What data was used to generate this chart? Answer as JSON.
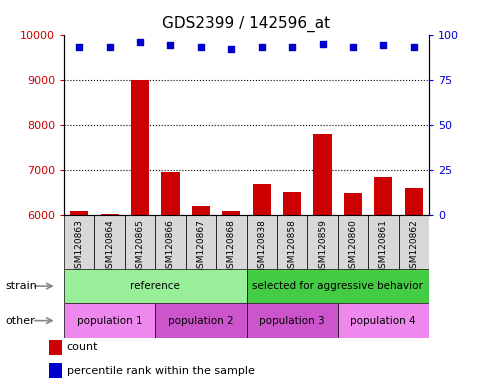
{
  "title": "GDS2399 / 142596_at",
  "samples": [
    "GSM120863",
    "GSM120864",
    "GSM120865",
    "GSM120866",
    "GSM120867",
    "GSM120868",
    "GSM120838",
    "GSM120858",
    "GSM120859",
    "GSM120860",
    "GSM120861",
    "GSM120862"
  ],
  "counts": [
    6100,
    6020,
    9000,
    6950,
    6200,
    6080,
    6680,
    6500,
    7800,
    6480,
    6850,
    6600
  ],
  "percentile_ranks": [
    93,
    93,
    96,
    94,
    93,
    92,
    93,
    93,
    95,
    93,
    94,
    93
  ],
  "ylim_left": [
    6000,
    10000
  ],
  "ylim_right": [
    0,
    100
  ],
  "yticks_left": [
    6000,
    7000,
    8000,
    9000,
    10000
  ],
  "yticks_right": [
    0,
    25,
    50,
    75,
    100
  ],
  "bar_color": "#cc0000",
  "dot_color": "#0000cc",
  "bg_color": "#ffffff",
  "strain_groups": [
    {
      "label": "reference",
      "start": 0,
      "end": 6,
      "color": "#99ee99"
    },
    {
      "label": "selected for aggressive behavior",
      "start": 6,
      "end": 12,
      "color": "#44cc44"
    }
  ],
  "other_groups": [
    {
      "label": "population 1",
      "start": 0,
      "end": 3,
      "color": "#ee88ee"
    },
    {
      "label": "population 2",
      "start": 3,
      "end": 6,
      "color": "#cc55cc"
    },
    {
      "label": "population 3",
      "start": 6,
      "end": 9,
      "color": "#cc55cc"
    },
    {
      "label": "population 4",
      "start": 9,
      "end": 12,
      "color": "#ee88ee"
    }
  ],
  "strain_label": "strain",
  "other_label": "other",
  "legend_count_label": "count",
  "legend_pct_label": "percentile rank within the sample",
  "title_fontsize": 11
}
